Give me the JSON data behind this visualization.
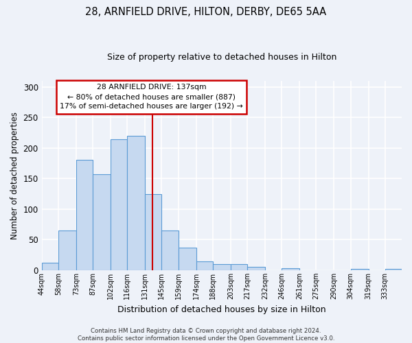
{
  "title": "28, ARNFIELD DRIVE, HILTON, DERBY, DE65 5AA",
  "subtitle": "Size of property relative to detached houses in Hilton",
  "xlabel": "Distribution of detached houses by size in Hilton",
  "ylabel": "Number of detached properties",
  "bin_labels": [
    "44sqm",
    "58sqm",
    "73sqm",
    "87sqm",
    "102sqm",
    "116sqm",
    "131sqm",
    "145sqm",
    "159sqm",
    "174sqm",
    "188sqm",
    "203sqm",
    "217sqm",
    "232sqm",
    "246sqm",
    "261sqm",
    "275sqm",
    "290sqm",
    "304sqm",
    "319sqm",
    "333sqm"
  ],
  "bin_edges": [
    44,
    58,
    73,
    87,
    102,
    116,
    131,
    145,
    159,
    174,
    188,
    203,
    217,
    232,
    246,
    261,
    275,
    290,
    304,
    319,
    333
  ],
  "bar_heights": [
    12,
    65,
    181,
    157,
    215,
    220,
    125,
    65,
    37,
    14,
    10,
    10,
    5,
    0,
    3,
    0,
    0,
    0,
    2,
    0,
    2
  ],
  "bar_color": "#c6d9f0",
  "bar_edge_color": "#5b9bd5",
  "vline_x": 137,
  "vline_color": "#cc0000",
  "annotation_title": "28 ARNFIELD DRIVE: 137sqm",
  "annotation_line1": "← 80% of detached houses are smaller (887)",
  "annotation_line2": "17% of semi-detached houses are larger (192) →",
  "annotation_box_color": "#cc0000",
  "ylim": [
    0,
    310
  ],
  "yticks": [
    0,
    50,
    100,
    150,
    200,
    250,
    300
  ],
  "footer1": "Contains HM Land Registry data © Crown copyright and database right 2024.",
  "footer2": "Contains public sector information licensed under the Open Government Licence v3.0.",
  "bg_color": "#eef2f9",
  "grid_color": "#ffffff"
}
